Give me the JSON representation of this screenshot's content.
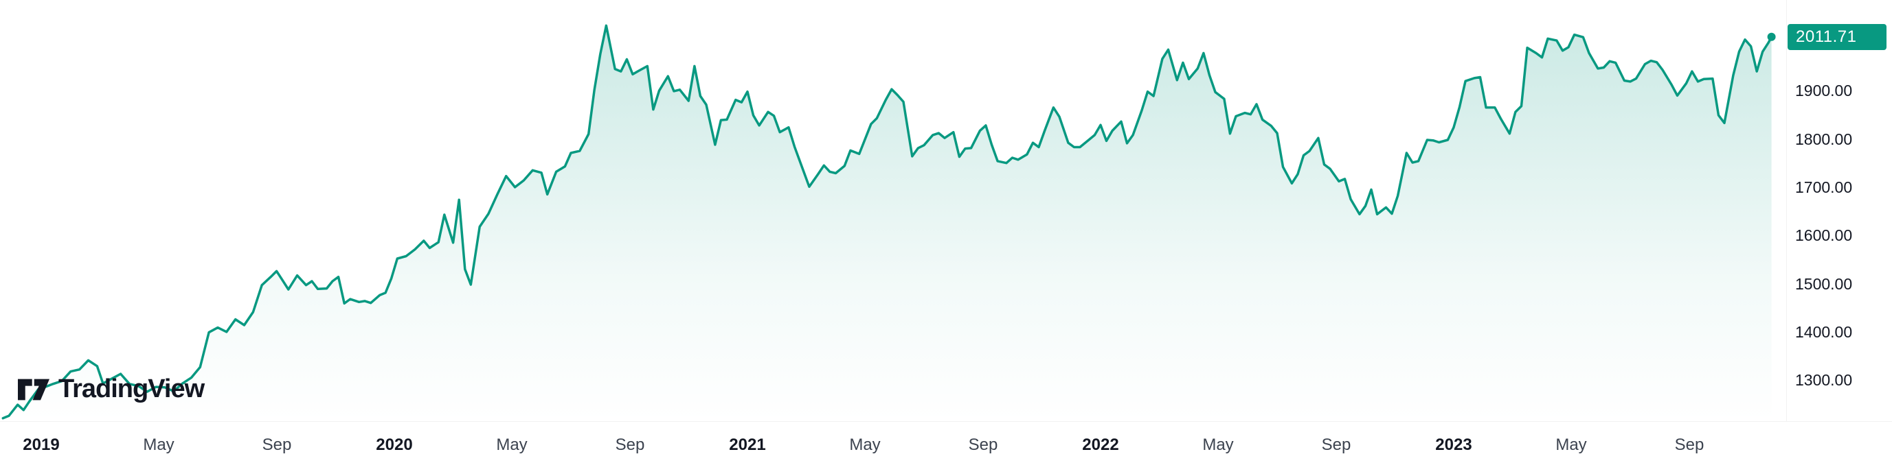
{
  "logo": {
    "text": "TradingView"
  },
  "colors": {
    "accent": "#089981",
    "badge_text": "#ffffff",
    "axis_text": "#131722",
    "month_text": "#3c434f",
    "logo_black": "#131722"
  },
  "chart_data": {
    "type": "area",
    "title": "Gold price area chart (TradingView widget)",
    "current_price": "2011.71",
    "x_unit": "months since 2019-01",
    "xlim": [
      -1.4,
      59.3
    ],
    "ylim": [
      1215,
      2088
    ],
    "grid": false,
    "legend": "none",
    "y_ticks": [
      {
        "value": 1900,
        "label": "1900.00"
      },
      {
        "value": 1800,
        "label": "1800.00"
      },
      {
        "value": 1700,
        "label": "1700.00"
      },
      {
        "value": 1600,
        "label": "1600.00"
      },
      {
        "value": 1500,
        "label": "1500.00"
      },
      {
        "value": 1400,
        "label": "1400.00"
      },
      {
        "value": 1300,
        "label": "1300.00"
      }
    ],
    "x_ticks": [
      {
        "t": 0,
        "label": "2019",
        "year": true
      },
      {
        "t": 4,
        "label": "May",
        "year": false
      },
      {
        "t": 8,
        "label": "Sep",
        "year": false
      },
      {
        "t": 12,
        "label": "2020",
        "year": true
      },
      {
        "t": 16,
        "label": "May",
        "year": false
      },
      {
        "t": 20,
        "label": "Sep",
        "year": false
      },
      {
        "t": 24,
        "label": "2021",
        "year": true
      },
      {
        "t": 28,
        "label": "May",
        "year": false
      },
      {
        "t": 32,
        "label": "Sep",
        "year": false
      },
      {
        "t": 36,
        "label": "2022",
        "year": true
      },
      {
        "t": 40,
        "label": "May",
        "year": false
      },
      {
        "t": 44,
        "label": "Sep",
        "year": false
      },
      {
        "t": 48,
        "label": "2023",
        "year": true
      },
      {
        "t": 52,
        "label": "May",
        "year": false
      },
      {
        "t": 56,
        "label": "Sep",
        "year": false
      }
    ],
    "points": [
      [
        -1.3,
        1221
      ],
      [
        -1.1,
        1226
      ],
      [
        -0.8,
        1249
      ],
      [
        -0.6,
        1238
      ],
      [
        -0.4,
        1256
      ],
      [
        -0.1,
        1281
      ],
      [
        0.1,
        1285
      ],
      [
        0.4,
        1292
      ],
      [
        0.7,
        1298
      ],
      [
        1.0,
        1318
      ],
      [
        1.3,
        1322
      ],
      [
        1.6,
        1341
      ],
      [
        1.9,
        1329
      ],
      [
        2.1,
        1293
      ],
      [
        2.4,
        1303
      ],
      [
        2.7,
        1313
      ],
      [
        3.0,
        1292
      ],
      [
        3.3,
        1288
      ],
      [
        3.6,
        1276
      ],
      [
        3.9,
        1286
      ],
      [
        4.2,
        1285
      ],
      [
        4.5,
        1277
      ],
      [
        4.8,
        1293
      ],
      [
        5.1,
        1305
      ],
      [
        5.4,
        1327
      ],
      [
        5.7,
        1399
      ],
      [
        6.0,
        1409
      ],
      [
        6.3,
        1400
      ],
      [
        6.6,
        1426
      ],
      [
        6.9,
        1414
      ],
      [
        7.2,
        1441
      ],
      [
        7.5,
        1497
      ],
      [
        7.8,
        1514
      ],
      [
        8.0,
        1526
      ],
      [
        8.2,
        1507
      ],
      [
        8.4,
        1488
      ],
      [
        8.7,
        1517
      ],
      [
        9.0,
        1497
      ],
      [
        9.2,
        1505
      ],
      [
        9.4,
        1489
      ],
      [
        9.7,
        1490
      ],
      [
        9.9,
        1505
      ],
      [
        10.1,
        1514
      ],
      [
        10.3,
        1459
      ],
      [
        10.5,
        1468
      ],
      [
        10.8,
        1462
      ],
      [
        11.0,
        1464
      ],
      [
        11.2,
        1460
      ],
      [
        11.5,
        1476
      ],
      [
        11.7,
        1481
      ],
      [
        11.9,
        1511
      ],
      [
        12.1,
        1552
      ],
      [
        12.4,
        1557
      ],
      [
        12.7,
        1571
      ],
      [
        13.0,
        1589
      ],
      [
        13.2,
        1574
      ],
      [
        13.5,
        1586
      ],
      [
        13.7,
        1643
      ],
      [
        14.0,
        1585
      ],
      [
        14.2,
        1674
      ],
      [
        14.4,
        1530
      ],
      [
        14.6,
        1498
      ],
      [
        14.9,
        1618
      ],
      [
        15.2,
        1645
      ],
      [
        15.5,
        1685
      ],
      [
        15.8,
        1723
      ],
      [
        16.1,
        1700
      ],
      [
        16.4,
        1714
      ],
      [
        16.7,
        1735
      ],
      [
        17.0,
        1730
      ],
      [
        17.2,
        1685
      ],
      [
        17.5,
        1732
      ],
      [
        17.8,
        1743
      ],
      [
        18.0,
        1771
      ],
      [
        18.3,
        1775
      ],
      [
        18.6,
        1810
      ],
      [
        18.8,
        1902
      ],
      [
        19.0,
        1976
      ],
      [
        19.2,
        2035
      ],
      [
        19.5,
        1945
      ],
      [
        19.7,
        1940
      ],
      [
        19.9,
        1965
      ],
      [
        20.1,
        1934
      ],
      [
        20.3,
        1941
      ],
      [
        20.6,
        1951
      ],
      [
        20.8,
        1861
      ],
      [
        21.0,
        1900
      ],
      [
        21.3,
        1930
      ],
      [
        21.5,
        1899
      ],
      [
        21.7,
        1902
      ],
      [
        22.0,
        1879
      ],
      [
        22.2,
        1951
      ],
      [
        22.4,
        1889
      ],
      [
        22.6,
        1871
      ],
      [
        22.9,
        1788
      ],
      [
        23.1,
        1839
      ],
      [
        23.3,
        1840
      ],
      [
        23.6,
        1881
      ],
      [
        23.8,
        1876
      ],
      [
        24.0,
        1898
      ],
      [
        24.2,
        1849
      ],
      [
        24.4,
        1828
      ],
      [
        24.7,
        1856
      ],
      [
        24.9,
        1848
      ],
      [
        25.1,
        1814
      ],
      [
        25.4,
        1824
      ],
      [
        25.6,
        1784
      ],
      [
        25.9,
        1734
      ],
      [
        26.1,
        1701
      ],
      [
        26.4,
        1727
      ],
      [
        26.6,
        1745
      ],
      [
        26.8,
        1732
      ],
      [
        27.0,
        1729
      ],
      [
        27.3,
        1744
      ],
      [
        27.5,
        1776
      ],
      [
        27.8,
        1769
      ],
      [
        28.2,
        1831
      ],
      [
        28.4,
        1843
      ],
      [
        28.7,
        1881
      ],
      [
        28.9,
        1903
      ],
      [
        29.1,
        1891
      ],
      [
        29.3,
        1877
      ],
      [
        29.6,
        1764
      ],
      [
        29.8,
        1781
      ],
      [
        30.0,
        1787
      ],
      [
        30.3,
        1808
      ],
      [
        30.5,
        1812
      ],
      [
        30.7,
        1802
      ],
      [
        31.0,
        1814
      ],
      [
        31.2,
        1763
      ],
      [
        31.4,
        1780
      ],
      [
        31.6,
        1781
      ],
      [
        31.9,
        1817
      ],
      [
        32.1,
        1828
      ],
      [
        32.3,
        1788
      ],
      [
        32.5,
        1754
      ],
      [
        32.8,
        1750
      ],
      [
        33.0,
        1761
      ],
      [
        33.2,
        1757
      ],
      [
        33.5,
        1768
      ],
      [
        33.7,
        1792
      ],
      [
        33.9,
        1783
      ],
      [
        34.1,
        1817
      ],
      [
        34.4,
        1865
      ],
      [
        34.6,
        1846
      ],
      [
        34.9,
        1792
      ],
      [
        35.1,
        1783
      ],
      [
        35.3,
        1783
      ],
      [
        35.6,
        1798
      ],
      [
        35.8,
        1808
      ],
      [
        36.0,
        1829
      ],
      [
        36.2,
        1796
      ],
      [
        36.4,
        1817
      ],
      [
        36.7,
        1836
      ],
      [
        36.9,
        1791
      ],
      [
        37.1,
        1808
      ],
      [
        37.4,
        1859
      ],
      [
        37.6,
        1898
      ],
      [
        37.8,
        1889
      ],
      [
        38.1,
        1966
      ],
      [
        38.3,
        1985
      ],
      [
        38.6,
        1922
      ],
      [
        38.8,
        1958
      ],
      [
        39.0,
        1924
      ],
      [
        39.3,
        1946
      ],
      [
        39.5,
        1978
      ],
      [
        39.7,
        1932
      ],
      [
        39.9,
        1897
      ],
      [
        40.2,
        1883
      ],
      [
        40.4,
        1811
      ],
      [
        40.6,
        1847
      ],
      [
        40.9,
        1854
      ],
      [
        41.1,
        1851
      ],
      [
        41.3,
        1872
      ],
      [
        41.5,
        1840
      ],
      [
        41.8,
        1827
      ],
      [
        42.0,
        1812
      ],
      [
        42.2,
        1742
      ],
      [
        42.5,
        1708
      ],
      [
        42.7,
        1727
      ],
      [
        42.9,
        1766
      ],
      [
        43.1,
        1775
      ],
      [
        43.4,
        1802
      ],
      [
        43.6,
        1747
      ],
      [
        43.8,
        1738
      ],
      [
        44.1,
        1712
      ],
      [
        44.3,
        1717
      ],
      [
        44.5,
        1675
      ],
      [
        44.8,
        1644
      ],
      [
        45.0,
        1661
      ],
      [
        45.2,
        1695
      ],
      [
        45.4,
        1644
      ],
      [
        45.7,
        1658
      ],
      [
        45.9,
        1645
      ],
      [
        46.1,
        1682
      ],
      [
        46.4,
        1771
      ],
      [
        46.6,
        1751
      ],
      [
        46.8,
        1754
      ],
      [
        47.1,
        1798
      ],
      [
        47.3,
        1797
      ],
      [
        47.5,
        1793
      ],
      [
        47.8,
        1798
      ],
      [
        48.0,
        1824
      ],
      [
        48.2,
        1866
      ],
      [
        48.4,
        1920
      ],
      [
        48.7,
        1926
      ],
      [
        48.9,
        1928
      ],
      [
        49.1,
        1865
      ],
      [
        49.4,
        1865
      ],
      [
        49.6,
        1842
      ],
      [
        49.9,
        1811
      ],
      [
        50.1,
        1856
      ],
      [
        50.3,
        1868
      ],
      [
        50.5,
        1989
      ],
      [
        50.8,
        1978
      ],
      [
        51.0,
        1969
      ],
      [
        51.2,
        2008
      ],
      [
        51.5,
        2004
      ],
      [
        51.7,
        1983
      ],
      [
        51.9,
        1990
      ],
      [
        52.1,
        2016
      ],
      [
        52.4,
        2011
      ],
      [
        52.6,
        1978
      ],
      [
        52.9,
        1946
      ],
      [
        53.1,
        1948
      ],
      [
        53.3,
        1961
      ],
      [
        53.5,
        1958
      ],
      [
        53.8,
        1921
      ],
      [
        54.0,
        1919
      ],
      [
        54.2,
        1925
      ],
      [
        54.5,
        1955
      ],
      [
        54.7,
        1962
      ],
      [
        54.9,
        1959
      ],
      [
        55.1,
        1943
      ],
      [
        55.4,
        1913
      ],
      [
        55.6,
        1890
      ],
      [
        55.9,
        1915
      ],
      [
        56.1,
        1940
      ],
      [
        56.3,
        1919
      ],
      [
        56.5,
        1924
      ],
      [
        56.8,
        1925
      ],
      [
        57.0,
        1849
      ],
      [
        57.2,
        1833
      ],
      [
        57.5,
        1932
      ],
      [
        57.7,
        1981
      ],
      [
        57.9,
        2006
      ],
      [
        58.1,
        1992
      ],
      [
        58.3,
        1940
      ],
      [
        58.5,
        1981
      ],
      [
        58.7,
        2000
      ],
      [
        58.8,
        2011.71
      ]
    ]
  }
}
